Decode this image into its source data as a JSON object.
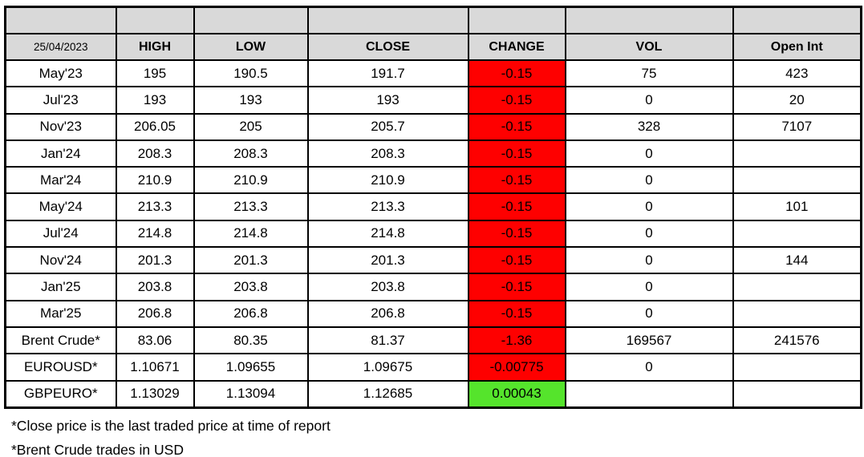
{
  "table": {
    "report_date": "25/04/2023",
    "columns": {
      "high": "HIGH",
      "low": "LOW",
      "close": "CLOSE",
      "change": "CHANGE",
      "vol": "VOL",
      "open_int": "Open Int"
    },
    "rows": [
      {
        "label": "May'23",
        "high": "195",
        "low": "190.5",
        "close": "191.7",
        "change": "-0.15",
        "change_dir": "down",
        "vol": "75",
        "open_int": "423"
      },
      {
        "label": "Jul'23",
        "high": "193",
        "low": "193",
        "close": "193",
        "change": "-0.15",
        "change_dir": "down",
        "vol": "0",
        "open_int": "20"
      },
      {
        "label": "Nov'23",
        "high": "206.05",
        "low": "205",
        "close": "205.7",
        "change": "-0.15",
        "change_dir": "down",
        "vol": "328",
        "open_int": "7107"
      },
      {
        "label": "Jan'24",
        "high": "208.3",
        "low": "208.3",
        "close": "208.3",
        "change": "-0.15",
        "change_dir": "down",
        "vol": "0",
        "open_int": ""
      },
      {
        "label": "Mar'24",
        "high": "210.9",
        "low": "210.9",
        "close": "210.9",
        "change": "-0.15",
        "change_dir": "down",
        "vol": "0",
        "open_int": ""
      },
      {
        "label": "May'24",
        "high": "213.3",
        "low": "213.3",
        "close": "213.3",
        "change": "-0.15",
        "change_dir": "down",
        "vol": "0",
        "open_int": "101"
      },
      {
        "label": "Jul'24",
        "high": "214.8",
        "low": "214.8",
        "close": "214.8",
        "change": "-0.15",
        "change_dir": "down",
        "vol": "0",
        "open_int": ""
      },
      {
        "label": "Nov'24",
        "high": "201.3",
        "low": "201.3",
        "close": "201.3",
        "change": "-0.15",
        "change_dir": "down",
        "vol": "0",
        "open_int": "144"
      },
      {
        "label": "Jan'25",
        "high": "203.8",
        "low": "203.8",
        "close": "203.8",
        "change": "-0.15",
        "change_dir": "down",
        "vol": "0",
        "open_int": ""
      },
      {
        "label": "Mar'25",
        "high": "206.8",
        "low": "206.8",
        "close": "206.8",
        "change": "-0.15",
        "change_dir": "down",
        "vol": "0",
        "open_int": ""
      },
      {
        "label": "Brent Crude*",
        "high": "83.06",
        "low": "80.35",
        "close": "81.37",
        "change": "-1.36",
        "change_dir": "down",
        "vol": "169567",
        "open_int": "241576"
      },
      {
        "label": "EUROUSD*",
        "high": "1.10671",
        "low": "1.09655",
        "close": "1.09675",
        "change": "-0.00775",
        "change_dir": "down",
        "vol": "0",
        "open_int": ""
      },
      {
        "label": "GBPEURO*",
        "high": "1.13029",
        "low": "1.13094",
        "close": "1.12685",
        "change": "0.00043",
        "change_dir": "up",
        "vol": "",
        "open_int": ""
      }
    ]
  },
  "footnotes": [
    "*Close price is the last traded price at time of report",
    "*Brent Crude trades in USD"
  ],
  "colors": {
    "header_bg": "#d9d9d9",
    "change_down": "#fe0000",
    "change_up": "#55e42c",
    "border": "#000000"
  }
}
